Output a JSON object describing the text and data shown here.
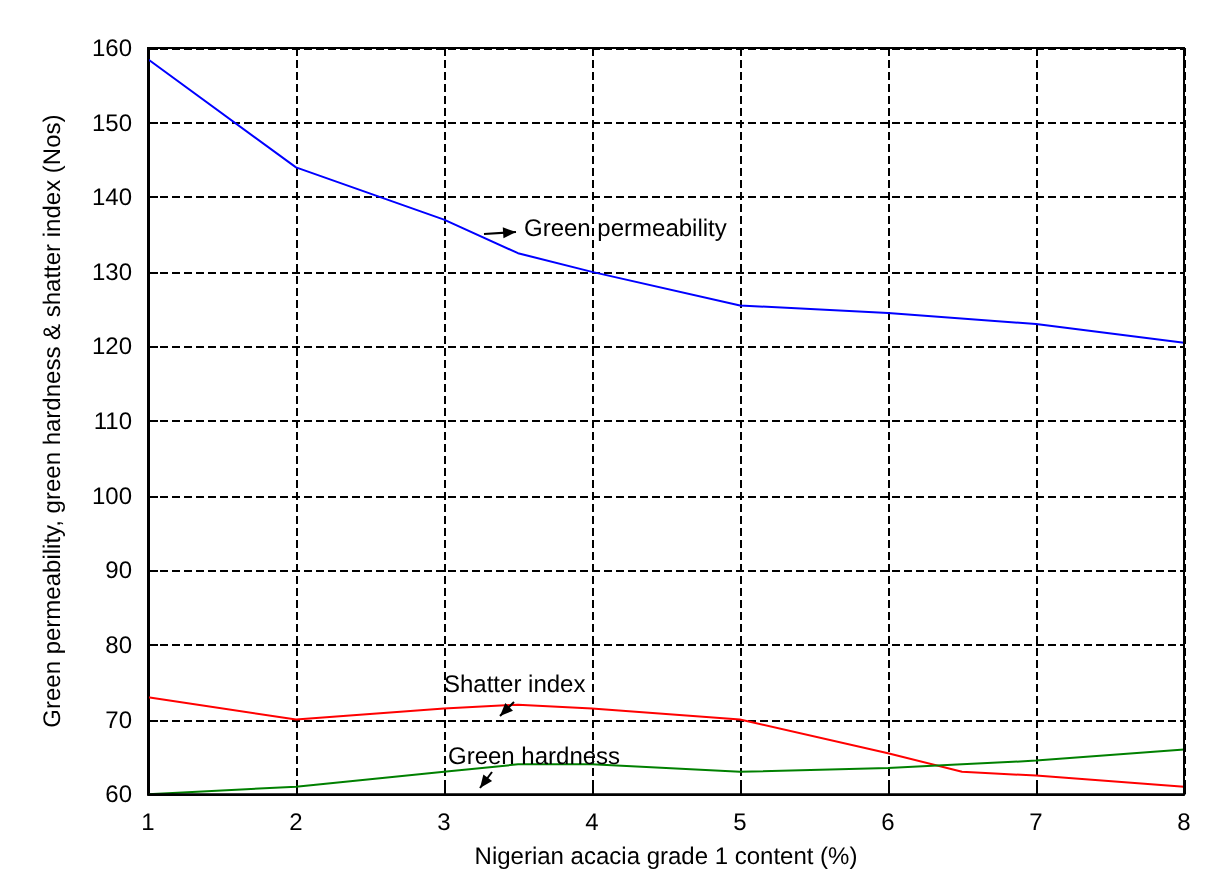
{
  "chart_data": {
    "type": "line",
    "xlabel": "Nigerian acacia grade 1 content (%)",
    "ylabel": "Green permeability, green hardness & shatter index (Nos)",
    "xlim": [
      1,
      8
    ],
    "xticks": [
      1,
      2,
      3,
      4,
      5,
      6,
      7,
      8
    ],
    "ylim": [
      60,
      160
    ],
    "yticks": [
      60,
      70,
      80,
      90,
      100,
      110,
      120,
      130,
      140,
      150,
      160
    ],
    "grid": true,
    "line_style": "solid",
    "series": [
      {
        "color": "#0000ff",
        "x": [
          1,
          2,
          3,
          3.5,
          4,
          5,
          6,
          7,
          8
        ],
        "values": [
          158.5,
          144,
          137,
          132.5,
          130,
          125.5,
          124.5,
          123,
          120.5
        ]
      },
      {
        "color": "#ff0000",
        "x": [
          1,
          2,
          3,
          3.5,
          4,
          5,
          6,
          6.5,
          7,
          8
        ],
        "values": [
          73,
          70,
          71.5,
          72,
          71.5,
          70,
          65.5,
          63,
          62.5,
          61
        ]
      },
      {
        "color": "#008000",
        "x": [
          1,
          2,
          3,
          3.5,
          4,
          5,
          6,
          6.5,
          7,
          8
        ],
        "values": [
          60,
          61,
          63,
          64,
          64,
          63,
          63.5,
          64,
          64.5,
          66
        ]
      }
    ],
    "annotations": [
      "Green permeability",
      "Shatter index",
      "Green hardness"
    ]
  }
}
